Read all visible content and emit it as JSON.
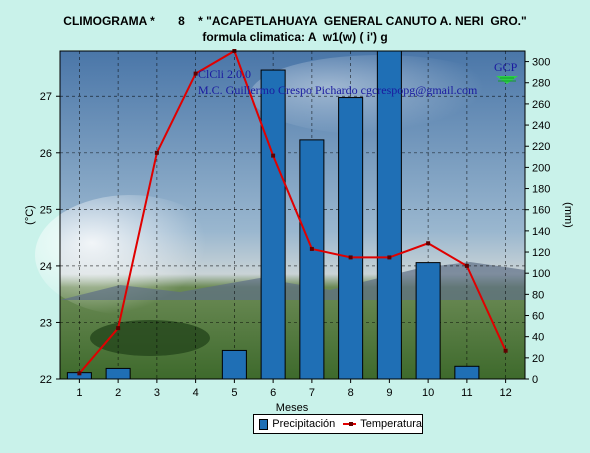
{
  "header": {
    "title": "CLIMOGRAMA *       8    * \"ACAPETLAHUAYA  GENERAL CANUTO A. NERI  GRO.\"",
    "subtitle": "formula climatica: A  w1(w) ( i') g"
  },
  "watermark": {
    "line1": "ClCli 2.0.0",
    "line2": "M.C. Guillermo Crespo Pichardo    cgcrespopg@gmail.com",
    "logo_text": "GCP"
  },
  "colors": {
    "background": "#c9f2ea",
    "bar": "#1f6fb5",
    "line": "#e00000",
    "marker": "#600000"
  },
  "legend": {
    "precip": "Precipitación",
    "temp": "Temperatura"
  },
  "chart_data": {
    "type": "bar+line",
    "xlabel": "Meses",
    "ylabel_left": "(°C)",
    "ylabel_right": "(mm)",
    "categories": [
      "1",
      "2",
      "3",
      "4",
      "5",
      "6",
      "7",
      "8",
      "9",
      "10",
      "11",
      "12"
    ],
    "y_left_lim": [
      22,
      27.8
    ],
    "y_left_ticks": [
      "22",
      "23",
      "24",
      "25",
      "26",
      "27"
    ],
    "y_right_lim": [
      0,
      310
    ],
    "y_right_ticks": [
      "0",
      "20",
      "40",
      "60",
      "80",
      "100",
      "120",
      "140",
      "160",
      "180",
      "200",
      "220",
      "240",
      "260",
      "280",
      "300"
    ],
    "grid": true,
    "series": [
      {
        "name": "Precipitación",
        "type": "bar",
        "axis": "right",
        "values": [
          6,
          10,
          0,
          0,
          27,
          292,
          226,
          266,
          312,
          110,
          12,
          0
        ]
      },
      {
        "name": "Temperatura",
        "type": "line",
        "axis": "left",
        "values": [
          22.1,
          22.9,
          26.0,
          27.4,
          27.8,
          25.95,
          24.3,
          24.15,
          24.15,
          24.4,
          24.0,
          22.5
        ]
      }
    ]
  }
}
